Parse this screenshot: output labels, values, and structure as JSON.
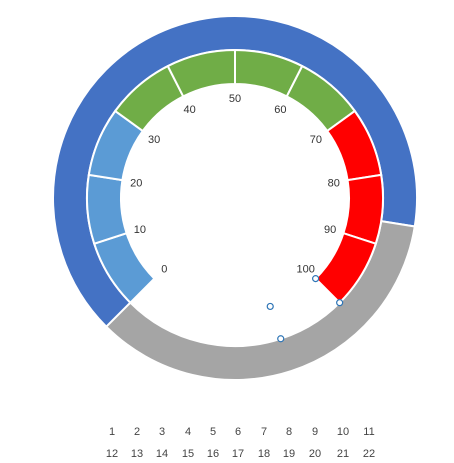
{
  "chart_data": {
    "type": "gauge",
    "outer_ring": {
      "values": [
        65,
        35
      ],
      "colors": [
        "#4472c4",
        "#a5a5a5"
      ]
    },
    "inner_ring": {
      "bands": [
        {
          "from": 0,
          "to": 30,
          "color": "#5b9bd5"
        },
        {
          "from": 30,
          "to": 70,
          "color": "#70ad47"
        },
        {
          "from": 70,
          "to": 100,
          "color": "#ff0000"
        }
      ],
      "segment_step": 10
    },
    "scale": {
      "min": 0,
      "max": 100,
      "step": 10
    },
    "tick_labels": [
      "0",
      "10",
      "20",
      "30",
      "40",
      "50",
      "60",
      "70",
      "80",
      "90",
      "100"
    ],
    "bottom_axis": {
      "row1": [
        "1",
        "2",
        "3",
        "4",
        "5",
        "6",
        "7",
        "8",
        "9",
        "10",
        "11"
      ],
      "row2": [
        "12",
        "13",
        "14",
        "15",
        "16",
        "17",
        "18",
        "19",
        "20",
        "21",
        "22"
      ]
    },
    "selected_segment": 10
  }
}
